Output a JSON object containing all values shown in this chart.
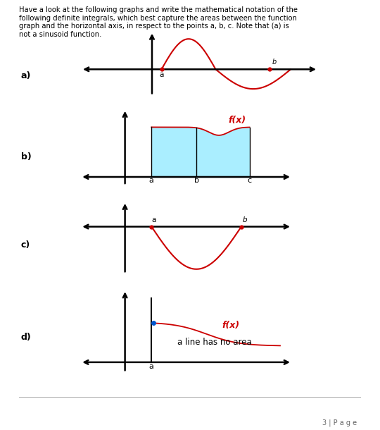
{
  "title_text": "Have a look at the following graphs and write the mathematical notation of the\nfollowing definite integrals, which best capture the areas between the function\ngraph and the horizontal axis, in respect to the points a, b, c. Note that (a) is\nnot a sinusoid function.",
  "page_label": "3 | P a g e",
  "background_color": "#ffffff",
  "text_color": "#000000",
  "curve_color_red": "#cc0000",
  "curve_color_blue": "#0055cc",
  "fill_color": "#aaeeff",
  "label_a": "a",
  "label_b": "b",
  "label_c": "c",
  "label_fx": "f(x)",
  "label_line": "a line has no area",
  "subplot_labels": [
    "a)",
    "b)",
    "c)",
    "d)"
  ]
}
